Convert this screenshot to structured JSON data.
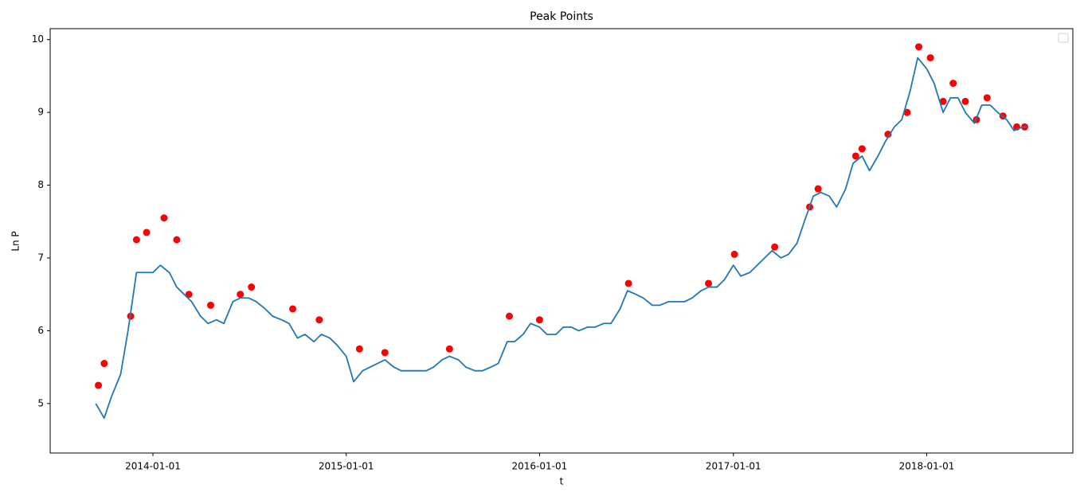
{
  "chart_data": {
    "type": "line",
    "title": "Peak Points",
    "x_label": "t",
    "y_label": "Ln P",
    "xlim": [
      "2013-06-21",
      "2018-10-04"
    ],
    "xticks": [
      "2014-01-01",
      "2015-01-01",
      "2016-01-01",
      "2017-01-01",
      "2018-01-01"
    ],
    "ylim": [
      4.32,
      10.15
    ],
    "yticks": [
      5,
      6,
      7,
      8,
      9,
      10
    ],
    "grid": false,
    "legend": "upper right",
    "series": [
      {
        "type": "scatter",
        "color": "#ff0000",
        "x": [
          "2013-09-20",
          "2013-10-01",
          "2013-11-20",
          "2013-12-01",
          "2013-12-20",
          "2014-01-22",
          "2014-02-15",
          "2014-03-10",
          "2014-04-20",
          "2014-06-15",
          "2014-07-06",
          "2014-09-22",
          "2014-11-11",
          "2015-01-26",
          "2015-03-15",
          "2015-07-15",
          "2015-11-05",
          "2016-01-01",
          "2016-06-17",
          "2016-11-15",
          "2017-01-03",
          "2017-03-20",
          "2017-05-25",
          "2017-06-10",
          "2017-08-20",
          "2017-09-01",
          "2017-10-20",
          "2017-11-25",
          "2017-12-17",
          "2018-01-08",
          "2018-02-01",
          "2018-02-20",
          "2018-03-15",
          "2018-04-05",
          "2018-04-25",
          "2018-05-25",
          "2018-06-20",
          "2018-07-05"
        ],
        "values": [
          5.25,
          5.55,
          6.2,
          7.25,
          7.35,
          7.55,
          7.25,
          6.5,
          6.35,
          6.5,
          6.6,
          6.3,
          6.15,
          5.75,
          5.7,
          5.75,
          6.2,
          6.15,
          6.65,
          6.65,
          7.05,
          7.15,
          7.7,
          7.95,
          8.4,
          8.5,
          8.7,
          9.0,
          9.9,
          9.75,
          9.15,
          9.4,
          9.15,
          8.9,
          9.2,
          8.95,
          8.8,
          8.8
        ]
      },
      {
        "type": "line",
        "color": "#1f77b4",
        "x": [
          "2013-09-15",
          "2013-10-01",
          "2013-10-15",
          "2013-11-01",
          "2013-11-15",
          "2013-12-01",
          "2013-12-15",
          "2014-01-01",
          "2014-01-15",
          "2014-02-01",
          "2014-02-15",
          "2014-03-01",
          "2014-03-15",
          "2014-04-01",
          "2014-04-15",
          "2014-05-01",
          "2014-05-15",
          "2014-06-01",
          "2014-06-15",
          "2014-07-01",
          "2014-07-15",
          "2014-08-01",
          "2014-08-15",
          "2014-09-01",
          "2014-09-15",
          "2014-10-01",
          "2014-10-15",
          "2014-11-01",
          "2014-11-15",
          "2014-12-01",
          "2014-12-15",
          "2015-01-01",
          "2015-01-15",
          "2015-02-01",
          "2015-02-15",
          "2015-03-01",
          "2015-03-15",
          "2015-04-01",
          "2015-04-15",
          "2015-05-01",
          "2015-05-15",
          "2015-06-01",
          "2015-06-15",
          "2015-07-01",
          "2015-07-15",
          "2015-08-01",
          "2015-08-15",
          "2015-09-01",
          "2015-09-15",
          "2015-10-01",
          "2015-10-15",
          "2015-11-01",
          "2015-11-15",
          "2015-12-01",
          "2015-12-15",
          "2016-01-01",
          "2016-01-15",
          "2016-02-01",
          "2016-02-15",
          "2016-03-01",
          "2016-03-15",
          "2016-04-01",
          "2016-04-15",
          "2016-05-01",
          "2016-05-15",
          "2016-06-01",
          "2016-06-15",
          "2016-07-01",
          "2016-07-15",
          "2016-08-01",
          "2016-08-15",
          "2016-09-01",
          "2016-09-15",
          "2016-10-01",
          "2016-10-15",
          "2016-11-01",
          "2016-11-15",
          "2016-12-01",
          "2016-12-15",
          "2017-01-01",
          "2017-01-15",
          "2017-02-01",
          "2017-02-15",
          "2017-03-01",
          "2017-03-15",
          "2017-04-01",
          "2017-04-15",
          "2017-05-01",
          "2017-05-15",
          "2017-06-01",
          "2017-06-15",
          "2017-07-01",
          "2017-07-15",
          "2017-08-01",
          "2017-08-15",
          "2017-09-01",
          "2017-09-15",
          "2017-10-01",
          "2017-10-15",
          "2017-11-01",
          "2017-11-15",
          "2017-12-01",
          "2017-12-15",
          "2018-01-01",
          "2018-01-15",
          "2018-02-01",
          "2018-02-15",
          "2018-03-01",
          "2018-03-15",
          "2018-04-01",
          "2018-04-15",
          "2018-05-01",
          "2018-05-15",
          "2018-06-01",
          "2018-06-15",
          "2018-07-01",
          "2018-07-10"
        ],
        "values": [
          5.0,
          4.8,
          5.1,
          5.4,
          6.0,
          6.8,
          6.8,
          6.8,
          6.9,
          6.8,
          6.6,
          6.5,
          6.4,
          6.2,
          6.1,
          6.15,
          6.1,
          6.4,
          6.45,
          6.45,
          6.4,
          6.3,
          6.2,
          6.15,
          6.1,
          5.9,
          5.95,
          5.85,
          5.95,
          5.9,
          5.8,
          5.65,
          5.3,
          5.45,
          5.5,
          5.55,
          5.6,
          5.5,
          5.45,
          5.45,
          5.45,
          5.45,
          5.5,
          5.6,
          5.65,
          5.6,
          5.5,
          5.45,
          5.45,
          5.5,
          5.55,
          5.85,
          5.85,
          5.95,
          6.1,
          6.05,
          5.95,
          5.95,
          6.05,
          6.05,
          6.0,
          6.05,
          6.05,
          6.1,
          6.1,
          6.3,
          6.55,
          6.5,
          6.45,
          6.35,
          6.35,
          6.4,
          6.4,
          6.4,
          6.45,
          6.55,
          6.6,
          6.6,
          6.7,
          6.9,
          6.75,
          6.8,
          6.9,
          7.0,
          7.1,
          7.0,
          7.05,
          7.2,
          7.5,
          7.85,
          7.9,
          7.85,
          7.7,
          7.95,
          8.3,
          8.4,
          8.2,
          8.4,
          8.6,
          8.8,
          8.9,
          9.3,
          9.75,
          9.6,
          9.4,
          9.0,
          9.2,
          9.2,
          9.0,
          8.85,
          9.1,
          9.1,
          9.0,
          8.9,
          8.75,
          8.8,
          8.8
        ]
      }
    ]
  }
}
